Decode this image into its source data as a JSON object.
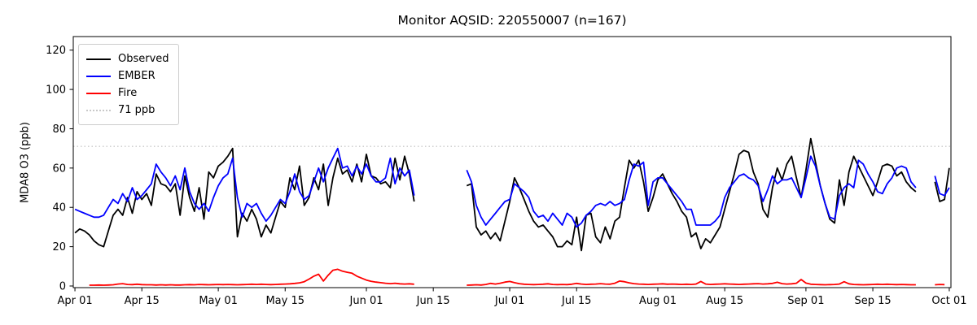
{
  "chart_data": {
    "type": "line",
    "title": "Monitor AQSID: 220550007 (n=167)",
    "xlabel": "",
    "ylabel": "MDA8 O3 (ppb)",
    "x_unit": "days since Apr 01",
    "xlim": [
      -0.35,
      183.35
    ],
    "ylim": [
      -0.83,
      126.9
    ],
    "grid": false,
    "legend_position": "upper left",
    "yticks": [
      0,
      20,
      40,
      60,
      80,
      100,
      120
    ],
    "xticks": [
      {
        "day": 0,
        "label": "Apr 01"
      },
      {
        "day": 14,
        "label": "Apr 15"
      },
      {
        "day": 30,
        "label": "May 01"
      },
      {
        "day": 44,
        "label": "May 15"
      },
      {
        "day": 61,
        "label": "Jun 01"
      },
      {
        "day": 75,
        "label": "Jun 15"
      },
      {
        "day": 91,
        "label": "Jul 01"
      },
      {
        "day": 105,
        "label": "Jul 15"
      },
      {
        "day": 122,
        "label": "Aug 01"
      },
      {
        "day": 136,
        "label": "Aug 15"
      },
      {
        "day": 153,
        "label": "Sep 01"
      },
      {
        "day": 167,
        "label": "Sep 15"
      },
      {
        "day": 183,
        "label": "Oct 01"
      }
    ],
    "threshold": {
      "value": 71,
      "label": "71 ppb",
      "color": "#c9c9c9",
      "style": "dotted"
    },
    "legend": [
      {
        "label": "Observed",
        "color": "#000000",
        "style": "solid"
      },
      {
        "label": "EMBER",
        "color": "#0000ff",
        "style": "solid"
      },
      {
        "label": "Fire",
        "color": "#ff0000",
        "style": "solid"
      },
      {
        "label": "71 ppb",
        "color": "#c9c9c9",
        "style": "dotted"
      }
    ],
    "series": [
      {
        "name": "Observed",
        "color": "#000000",
        "values": [
          27,
          29,
          28,
          26,
          23,
          21,
          20,
          28,
          36,
          39,
          36,
          45,
          37,
          48,
          44,
          47,
          41,
          57,
          52,
          51,
          48,
          52,
          36,
          56,
          45,
          38,
          50,
          34,
          58,
          55,
          61,
          63,
          66,
          70,
          25,
          37,
          33,
          39,
          34,
          25,
          31,
          27,
          35,
          43,
          40,
          55,
          49,
          61,
          41,
          45,
          55,
          49,
          62,
          41,
          55,
          65,
          57,
          59,
          53,
          62,
          53,
          67,
          56,
          55,
          52,
          53,
          50,
          65,
          54,
          66,
          57,
          43,
          null,
          null,
          null,
          null,
          null,
          null,
          null,
          null,
          null,
          null,
          51,
          52,
          30,
          26,
          28,
          24,
          27,
          23,
          33,
          43,
          55,
          50,
          44,
          38,
          33,
          30,
          31,
          28,
          25,
          20,
          20,
          23,
          21,
          35,
          18,
          36,
          37,
          25,
          22,
          30,
          24,
          33,
          35,
          50,
          64,
          60,
          64,
          53,
          38,
          45,
          54,
          57,
          52,
          47,
          43,
          38,
          35,
          25,
          27,
          19,
          24,
          22,
          26,
          30,
          39,
          48,
          57,
          67,
          69,
          68,
          58,
          52,
          39,
          35,
          50,
          60,
          54,
          62,
          66,
          55,
          45,
          59,
          75,
          63,
          51,
          42,
          34,
          32,
          54,
          41,
          58,
          66,
          61,
          56,
          51,
          46,
          53,
          61,
          62,
          61,
          56,
          58,
          53,
          50,
          48,
          null,
          null,
          null,
          53,
          43,
          44,
          60
        ]
      },
      {
        "name": "EMBER",
        "color": "#0000ff",
        "values": [
          39,
          38,
          37,
          36,
          35,
          35,
          36,
          40,
          44,
          42,
          47,
          43,
          50,
          44,
          46,
          49,
          52,
          62,
          58,
          55,
          51,
          56,
          49,
          60,
          48,
          42,
          39,
          42,
          38,
          45,
          51,
          55,
          57,
          65,
          45,
          35,
          42,
          40,
          42,
          37,
          33,
          36,
          40,
          44,
          42,
          48,
          57,
          48,
          44,
          46,
          53,
          60,
          53,
          60,
          65,
          70,
          60,
          61,
          56,
          61,
          57,
          62,
          56,
          53,
          53,
          55,
          65,
          52,
          60,
          56,
          59,
          46,
          null,
          null,
          null,
          null,
          null,
          null,
          null,
          null,
          null,
          null,
          59,
          53,
          41,
          35,
          31,
          34,
          37,
          40,
          43,
          44,
          52,
          50,
          48,
          45,
          38,
          35,
          36,
          33,
          37,
          34,
          31,
          37,
          35,
          30,
          32,
          36,
          38,
          41,
          42,
          41,
          43,
          41,
          42,
          44,
          54,
          62,
          61,
          63,
          41,
          53,
          55,
          55,
          52,
          49,
          46,
          43,
          39,
          39,
          31,
          31,
          31,
          31,
          33,
          36,
          45,
          50,
          53,
          56,
          57,
          55,
          54,
          51,
          43,
          49,
          56,
          52,
          54,
          54,
          55,
          50,
          45,
          55,
          66,
          61,
          51,
          42,
          35,
          34,
          46,
          50,
          52,
          50,
          64,
          62,
          57,
          53,
          48,
          47,
          52,
          55,
          60,
          61,
          60,
          53,
          50,
          null,
          null,
          null,
          56,
          47,
          46,
          50
        ]
      },
      {
        "name": "Fire",
        "color": "#ff0000",
        "values": [
          null,
          null,
          null,
          0.4,
          0.4,
          0.5,
          0.4,
          0.5,
          0.6,
          1.0,
          1.2,
          0.8,
          0.7,
          0.9,
          0.7,
          0.6,
          0.6,
          0.5,
          0.6,
          0.5,
          0.6,
          0.5,
          0.5,
          0.6,
          0.7,
          0.6,
          0.8,
          0.7,
          0.6,
          0.7,
          0.8,
          0.7,
          0.8,
          0.7,
          0.6,
          0.7,
          0.8,
          0.9,
          0.8,
          0.9,
          0.8,
          0.7,
          0.8,
          0.9,
          1.0,
          1.1,
          1.3,
          1.6,
          2.2,
          3.5,
          5.0,
          6.0,
          2.5,
          5.5,
          8.0,
          8.5,
          7.5,
          7.0,
          6.5,
          5.0,
          4.0,
          3.0,
          2.4,
          2.0,
          1.7,
          1.4,
          1.2,
          1.4,
          1.1,
          1.0,
          1.1,
          0.9,
          null,
          null,
          null,
          null,
          null,
          null,
          null,
          null,
          null,
          null,
          0.4,
          0.5,
          0.6,
          0.5,
          0.8,
          1.3,
          1.0,
          1.4,
          2.0,
          2.3,
          1.7,
          1.2,
          0.9,
          0.8,
          0.7,
          0.8,
          0.9,
          1.1,
          0.8,
          0.7,
          0.8,
          0.7,
          0.9,
          1.3,
          1.0,
          0.8,
          0.9,
          1.0,
          1.2,
          1.0,
          0.9,
          1.4,
          2.5,
          2.2,
          1.6,
          1.2,
          1.0,
          0.9,
          0.8,
          0.9,
          1.0,
          1.1,
          0.9,
          1.0,
          0.9,
          0.8,
          0.9,
          0.8,
          1.0,
          2.3,
          1.0,
          0.8,
          0.9,
          1.0,
          1.1,
          1.0,
          0.9,
          0.8,
          0.9,
          1.0,
          1.1,
          1.2,
          1.0,
          1.1,
          1.3,
          1.9,
          1.2,
          1.0,
          1.1,
          1.4,
          3.3,
          1.5,
          0.9,
          0.8,
          0.7,
          0.6,
          0.7,
          0.8,
          1.0,
          2.2,
          1.1,
          0.8,
          0.7,
          0.6,
          0.7,
          0.8,
          0.9,
          0.8,
          0.9,
          0.8,
          0.7,
          0.8,
          0.7,
          0.6,
          0.6,
          null,
          null,
          null,
          0.6,
          0.8,
          0.7,
          null
        ]
      }
    ]
  }
}
